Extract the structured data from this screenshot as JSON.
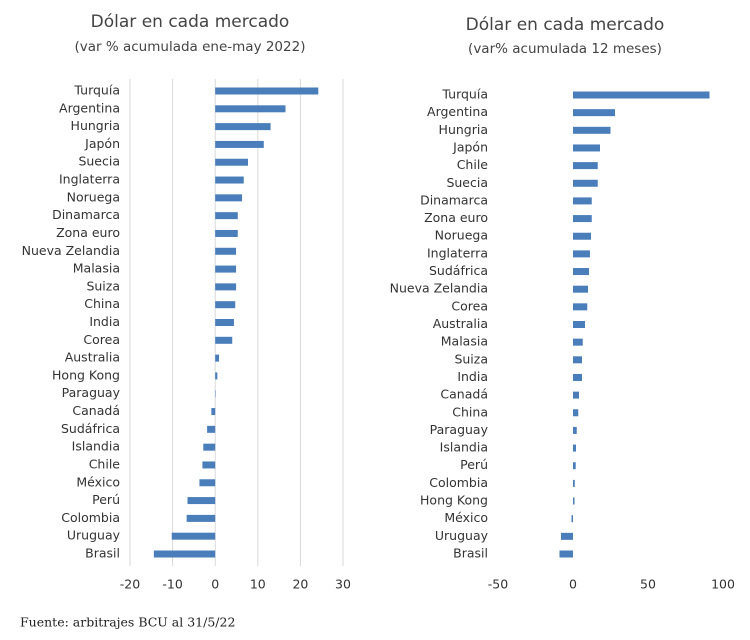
{
  "chart_data": [
    {
      "type": "barh",
      "title": "Dólar en cada mercado",
      "subtitle": "(var % acumulada ene-may 2022)",
      "categories": [
        "Turquía",
        "Argentina",
        "Hungria",
        "Japón",
        "Suecia",
        "Inglaterra",
        "Noruega",
        "Dinamarca",
        "Zona euro",
        "Nueva Zelandia",
        "Malasia",
        "Suiza",
        "China",
        "India",
        "Corea",
        "Australia",
        "Hong Kong",
        "Paraguay",
        "Canadá",
        "Sudáfrica",
        "Islandia",
        "Chile",
        "México",
        "Perú",
        "Colombia",
        "Uruguay",
        "Brasil"
      ],
      "values": [
        24.2,
        16.5,
        13,
        11.4,
        7.7,
        6.7,
        6.3,
        5.3,
        5.3,
        4.9,
        4.9,
        4.9,
        4.7,
        4.4,
        4,
        0.9,
        0.5,
        0.1,
        -0.9,
        -1.9,
        -2.8,
        -3,
        -3.7,
        -6.5,
        -6.7,
        -10.2,
        -14.4
      ],
      "color": "#4a7ebb",
      "xlim": [
        -20,
        30
      ],
      "xticks": [
        -20,
        -10,
        0,
        10,
        20,
        30
      ],
      "grid": true
    },
    {
      "type": "barh",
      "title": "Dólar en cada mercado",
      "subtitle": "(var% acumulada 12 meses)",
      "categories": [
        "Turquía",
        "Argentina",
        "Hungria",
        "Japón",
        "Chile",
        "Suecia",
        "Dinamarca",
        "Zona euro",
        "Noruega",
        "Inglaterra",
        "Sudáfrica",
        "Nueva Zelandia",
        "Corea",
        "Australia",
        "Malasia",
        "Suiza",
        "India",
        "Canadá",
        "China",
        "Paraguay",
        "Islandia",
        "Perú",
        "Colombia",
        "Hong Kong",
        "México",
        "Uruguay",
        "Brasil"
      ],
      "values": [
        91,
        28,
        25,
        18,
        16.5,
        16.5,
        12.5,
        12.5,
        12,
        11.3,
        10.7,
        10,
        9.5,
        8,
        6.5,
        6,
        6,
        4,
        3.5,
        2.5,
        2,
        1.8,
        1.2,
        1,
        -1,
        -8,
        -9
      ],
      "color": "#4a7ebb",
      "xlim": [
        -50,
        100
      ],
      "xticks": [
        -50,
        0,
        50,
        100
      ],
      "grid": false
    }
  ],
  "footer": "Fuente: arbitrajes BCU al 31/5/22"
}
